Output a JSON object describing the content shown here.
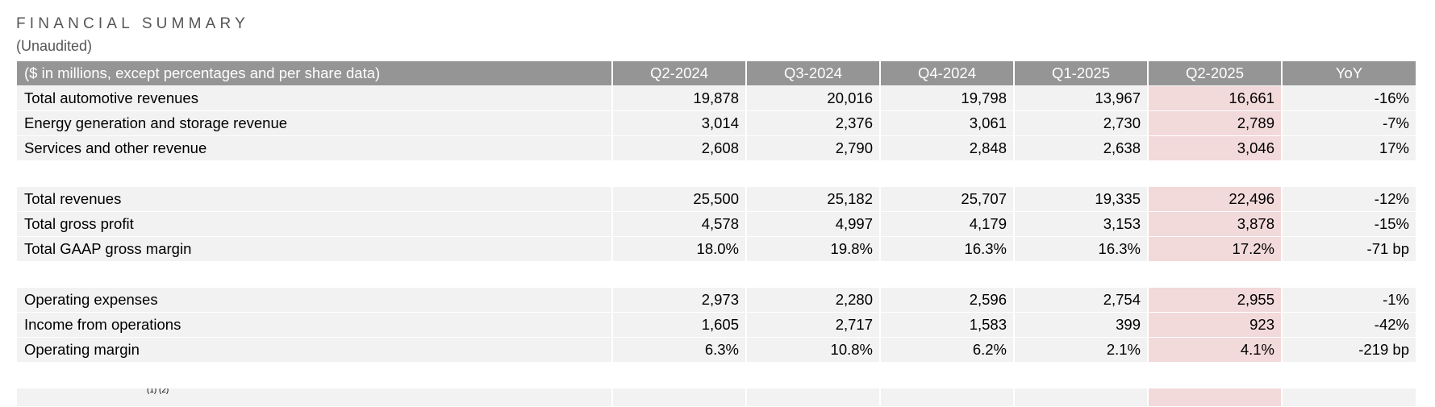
{
  "header": {
    "title": "FINANCIAL SUMMARY",
    "subtitle": "(Unaudited)"
  },
  "table": {
    "label_header": "($ in millions, except percentages and per share data)",
    "columns": [
      "Q2-2024",
      "Q3-2024",
      "Q4-2024",
      "Q1-2025",
      "Q2-2025",
      "YoY"
    ],
    "highlight_color": "#f2d9da",
    "header_color": "#959595",
    "rows": [
      {
        "label": "Total automotive revenues",
        "values": [
          "19,878",
          "20,016",
          "19,798",
          "13,967",
          "16,661",
          "-16%"
        ]
      },
      {
        "label": "Energy generation and storage revenue",
        "values": [
          "3,014",
          "2,376",
          "3,061",
          "2,730",
          "2,789",
          "-7%"
        ]
      },
      {
        "label": "Services and other revenue",
        "values": [
          "2,608",
          "2,790",
          "2,848",
          "2,638",
          "3,046",
          "17%"
        ]
      },
      {
        "label": "Total revenues",
        "values": [
          "25,500",
          "25,182",
          "25,707",
          "19,335",
          "22,496",
          "-12%"
        ]
      },
      {
        "label": "Total gross profit",
        "values": [
          "4,578",
          "4,997",
          "4,179",
          "3,153",
          "3,878",
          "-15%"
        ]
      },
      {
        "label": "Total GAAP gross margin",
        "values": [
          "18.0%",
          "19.8%",
          "16.3%",
          "16.3%",
          "17.2%",
          "-71 bp"
        ]
      },
      {
        "label": "Operating expenses",
        "values": [
          "2,973",
          "2,280",
          "2,596",
          "2,754",
          "2,955",
          "-1%"
        ]
      },
      {
        "label": "Income from operations",
        "values": [
          "1,605",
          "2,717",
          "1,583",
          "399",
          "923",
          "-42%"
        ]
      },
      {
        "label": "Operating margin",
        "values": [
          "6.3%",
          "10.8%",
          "6.2%",
          "2.1%",
          "4.1%",
          "-219 bp"
        ]
      }
    ],
    "partial_row_footnote": "(1) (2)"
  }
}
